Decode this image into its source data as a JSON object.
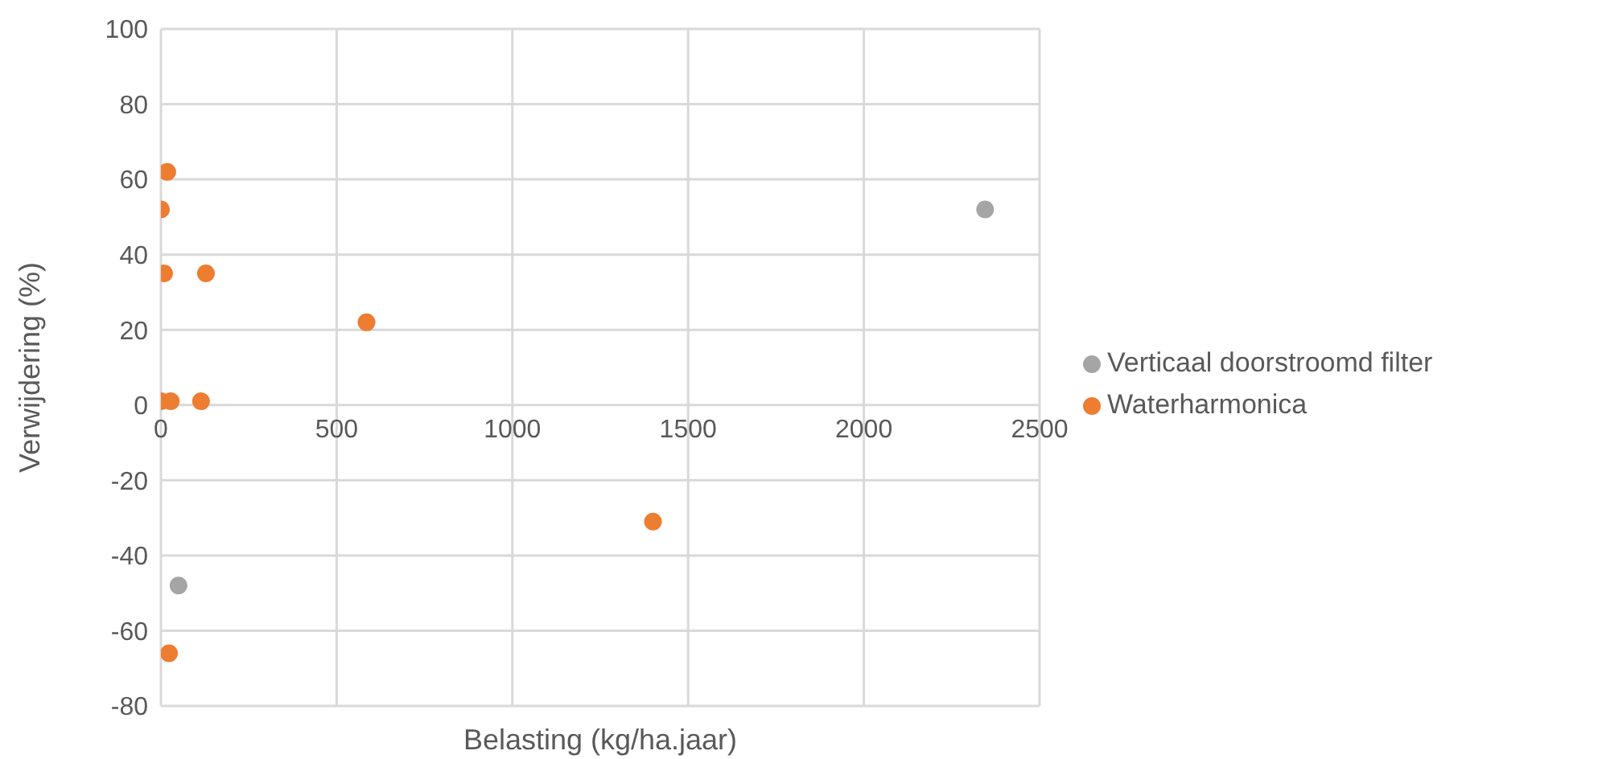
{
  "chart_data": {
    "type": "scatter",
    "xlabel": "Belasting (kg/ha.jaar)",
    "ylabel": "Verwijdering (%)",
    "xlim": [
      0,
      2500
    ],
    "xticks": [
      0,
      500,
      1000,
      1500,
      2000,
      2500
    ],
    "ylim": [
      -80,
      100
    ],
    "yticks": [
      -80,
      -60,
      -40,
      -20,
      0,
      20,
      40,
      60,
      80,
      100
    ],
    "grid": true,
    "legend": "right",
    "marker": "circle",
    "series": [
      {
        "name": "Verticaal doorstroomd filter",
        "color": "#a5a5a5",
        "x": [
          50,
          2345
        ],
        "values": [
          -48,
          52
        ]
      },
      {
        "name": "Waterharmonica",
        "color": "#ed7d31",
        "x": [
          18,
          0,
          9,
          128,
          585,
          0,
          28,
          114,
          1400,
          23
        ],
        "values": [
          62,
          52,
          35,
          35,
          22,
          1,
          1,
          1,
          -31,
          -66
        ]
      }
    ]
  }
}
